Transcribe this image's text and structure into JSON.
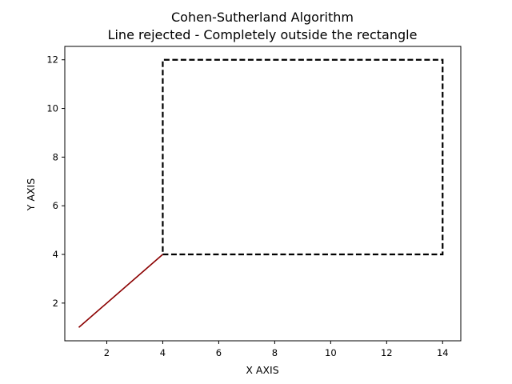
{
  "chart_data": {
    "type": "line",
    "title": "Cohen-Sutherland Algorithm",
    "subtitle": "Line rejected - Completely outside the rectangle",
    "xlabel": "X AXIS",
    "ylabel": "Y AXIS",
    "xlim": [
      0.5,
      14.65
    ],
    "ylim": [
      0.45,
      12.55
    ],
    "grid": false,
    "xticks": [
      2,
      4,
      6,
      8,
      10,
      12,
      14
    ],
    "yticks": [
      2,
      4,
      6,
      8,
      10,
      12
    ],
    "series": [
      {
        "kind": "clip-rectangle",
        "style": "dashed",
        "color": "#000000",
        "x": [
          4,
          14,
          14,
          4,
          4
        ],
        "y": [
          4,
          4,
          12,
          12,
          4
        ]
      },
      {
        "kind": "line-segment",
        "style": "solid",
        "color": "#8b0000",
        "x": [
          1,
          4
        ],
        "y": [
          1,
          4
        ]
      }
    ]
  }
}
